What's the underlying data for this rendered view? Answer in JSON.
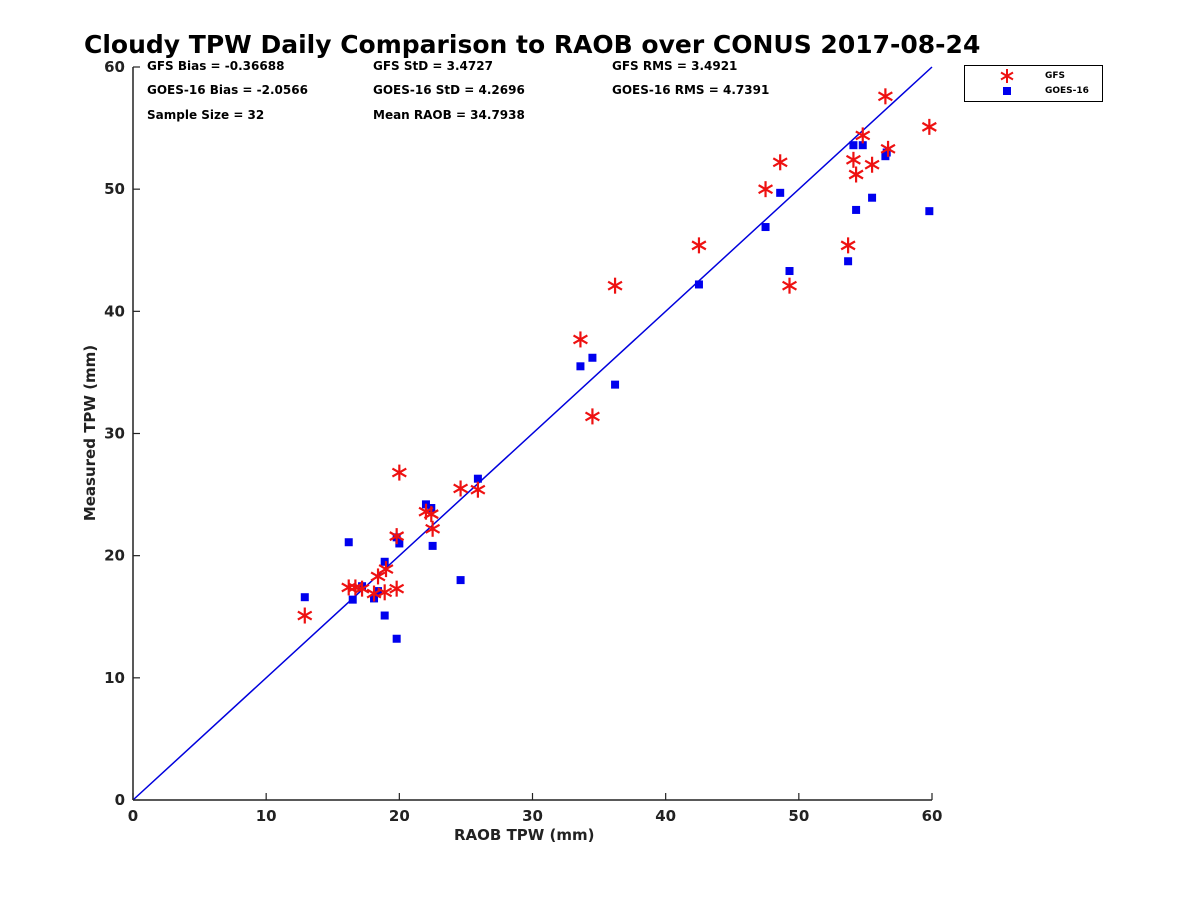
{
  "chart_data": {
    "type": "scatter",
    "title": "Cloudy TPW Daily Comparison to RAOB over CONUS 2017-08-24",
    "xlabel": "RAOB TPW (mm)",
    "ylabel": "Measured TPW (mm)",
    "xlim": [
      0,
      60
    ],
    "ylim": [
      0,
      60
    ],
    "xticks": [
      "0",
      "10",
      "20",
      "30",
      "40",
      "50",
      "60"
    ],
    "yticks": [
      "0",
      "10",
      "20",
      "30",
      "40",
      "50",
      "60"
    ],
    "grid": false,
    "legend_position": "top-right outside",
    "reference_line": {
      "from": [
        0,
        0
      ],
      "to": [
        60,
        60
      ],
      "color": "#0000dd"
    },
    "annotations": [
      "GFS Bias = -0.36688",
      "GFS StD = 3.4727",
      "GFS RMS = 3.4921",
      "GOES-16 Bias = -2.0566",
      "GOES-16 StD = 4.2696",
      "GOES-16 RMS = 4.7391",
      "Sample Size = 32",
      "Mean RAOB = 34.7938"
    ],
    "series": [
      {
        "name": "GFS",
        "marker": "asterisk",
        "color": "#ee1111",
        "x": [
          12.9,
          16.2,
          16.7,
          17.2,
          18.1,
          18.4,
          18.9,
          19.0,
          19.8,
          19.8,
          20.0,
          22.0,
          22.4,
          22.5,
          24.6,
          25.9,
          33.6,
          34.5,
          36.2,
          42.5,
          47.5,
          48.6,
          49.3,
          53.7,
          54.1,
          54.3,
          54.8,
          55.5,
          56.5,
          56.7,
          59.8
        ],
        "y": [
          15.1,
          17.4,
          17.4,
          17.3,
          16.9,
          18.3,
          17.0,
          18.9,
          17.3,
          21.6,
          26.8,
          23.6,
          23.4,
          22.2,
          25.5,
          25.4,
          37.7,
          31.4,
          42.1,
          45.4,
          50.0,
          52.2,
          42.1,
          45.4,
          52.4,
          51.2,
          54.4,
          52.0,
          57.6,
          53.3,
          55.1
        ]
      },
      {
        "name": "GOES-16",
        "marker": "square",
        "color": "#0000ee",
        "x": [
          12.9,
          16.2,
          16.5,
          17.2,
          18.1,
          18.4,
          18.9,
          18.9,
          19.8,
          19.8,
          20.0,
          22.0,
          22.4,
          22.5,
          24.6,
          25.9,
          33.6,
          34.5,
          36.2,
          42.5,
          47.5,
          48.6,
          49.3,
          53.7,
          54.1,
          54.3,
          54.8,
          55.5,
          56.5,
          56.6,
          59.8
        ],
        "y": [
          16.6,
          21.1,
          16.4,
          17.5,
          16.5,
          17.1,
          15.1,
          19.5,
          13.2,
          21.5,
          21.0,
          24.2,
          23.9,
          20.8,
          18.0,
          26.3,
          35.5,
          36.2,
          34.0,
          42.2,
          46.9,
          49.7,
          43.3,
          44.1,
          53.6,
          48.3,
          53.6,
          49.3,
          52.7,
          53.0,
          48.2
        ]
      }
    ]
  }
}
